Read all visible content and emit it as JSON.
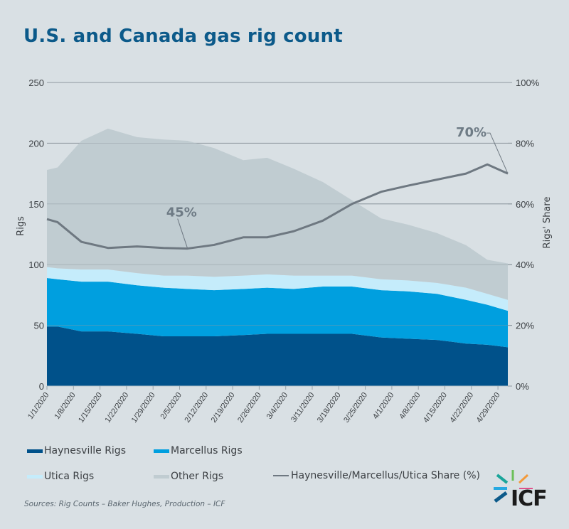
{
  "title": "U.S. and Canada gas rig count",
  "colors": {
    "haynesville": "#00518a",
    "marcellus": "#009fdf",
    "utica": "#c5ecfb",
    "other": "#c0ccd1",
    "share_line": "#6e7881",
    "title": "#0c5a8a",
    "background": "#d9e0e4"
  },
  "legend": {
    "haynesville": "Haynesville Rigs",
    "marcellus": "Marcellus Rigs",
    "utica": "Utica Rigs",
    "other": "Other Rigs",
    "share": "Haynesville/Marcellus/Utica Share (%)"
  },
  "source": "Sources: Rig Counts – Baker Hughes, Production – ICF",
  "logo": {
    "text": "ICF",
    "icon": "icf-sunburst-icon"
  },
  "chart_data": {
    "type": "area",
    "stacked": true,
    "title": "U.S. and Canada gas rig count",
    "xlabel": "",
    "ylabel": "Rigs",
    "y2label": "Rigs' Share",
    "ylim": [
      0,
      250
    ],
    "y2lim": [
      0,
      100
    ],
    "yticks": [
      "0",
      "50",
      "100",
      "150",
      "200",
      "250"
    ],
    "y2ticks": [
      "0%",
      "20%",
      "40%",
      "60%",
      "80%",
      "100%"
    ],
    "grid": true,
    "legend_position": "bottom",
    "x_tick_labels": [
      "1/1/2020",
      "1/8/2020",
      "1/15/2020",
      "1/22/2020",
      "1/29/2020",
      "2/5/2020",
      "2/12/2020",
      "2/19/2020",
      "2/26/2020",
      "3/4/2020",
      "3/11/2020",
      "3/18/2020",
      "3/25/2020",
      "4/1/2020",
      "4/8/2020",
      "4/15/2020",
      "4/22/2020",
      "4/29/2020"
    ],
    "x_positions": [
      0,
      0.4,
      1.3,
      2.3,
      3.4,
      4.4,
      5.3,
      6.3,
      7.4,
      8.3,
      9.3,
      10.4,
      11.5,
      12.6,
      13.6,
      14.7,
      15.8,
      16.6,
      17.5
    ],
    "series": [
      {
        "name": "Haynesville Rigs",
        "key": "haynesville",
        "values": [
          49,
          49,
          45,
          45,
          43,
          41,
          41,
          41,
          42,
          43,
          43,
          43,
          43,
          40,
          39,
          38,
          35,
          34,
          32
        ]
      },
      {
        "name": "Marcellus Rigs",
        "key": "marcellus",
        "values": [
          40,
          39,
          41,
          41,
          40,
          40,
          39,
          38,
          38,
          38,
          37,
          39,
          39,
          39,
          39,
          38,
          36,
          33,
          30
        ]
      },
      {
        "name": "Utica Rigs",
        "key": "utica",
        "values": [
          9,
          9,
          10,
          10,
          10,
          10,
          11,
          11,
          11,
          11,
          11,
          9,
          9,
          9,
          9,
          9,
          10,
          9,
          9
        ]
      },
      {
        "name": "Other Rigs",
        "key": "other",
        "values": [
          80,
          83,
          106,
          116,
          112,
          112,
          111,
          106,
          95,
          96,
          88,
          77,
          62,
          50,
          46,
          41,
          35,
          28,
          30
        ]
      }
    ],
    "line_series": {
      "name": "Haynesville/Marcellus/Utica Share (%)",
      "axis": "y2",
      "values": [
        55,
        54,
        47.5,
        45.5,
        46,
        45.5,
        45.3,
        46.5,
        49,
        49,
        51,
        54.5,
        60,
        64,
        66,
        68,
        70,
        73,
        70
      ]
    },
    "annotations": [
      {
        "text": "45%",
        "point_index": 6
      },
      {
        "text": "70%",
        "point_index": 18
      }
    ]
  }
}
